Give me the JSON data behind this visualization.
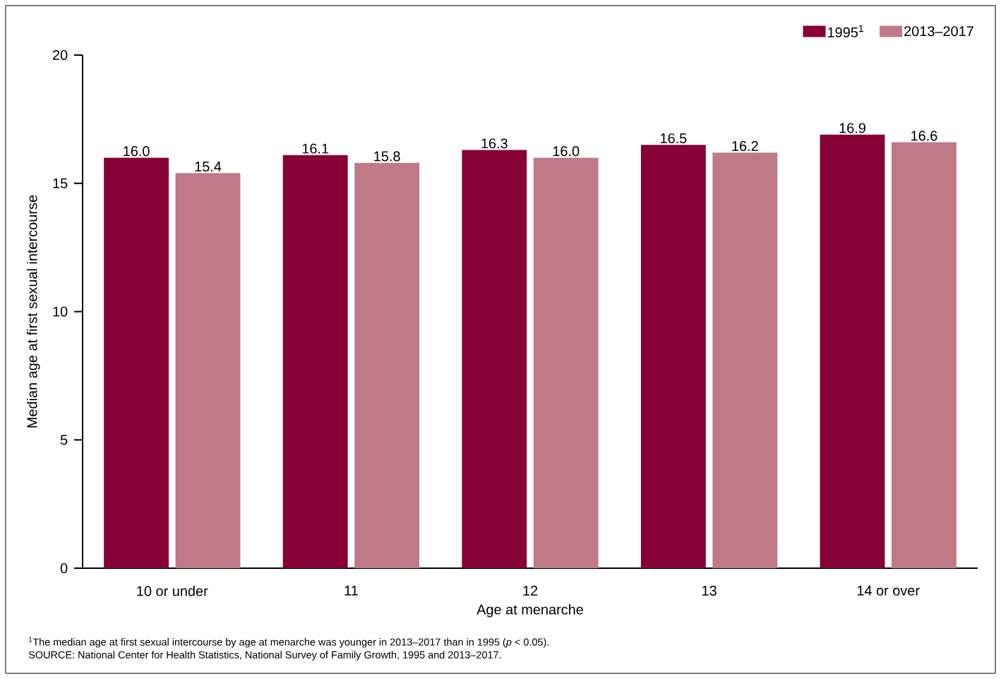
{
  "chart_data": {
    "type": "bar",
    "xlabel": "Age at menarche",
    "ylabel": "Median age at first sexual intercourse",
    "categories": [
      "10 or under",
      "11",
      "12",
      "13",
      "14 or over"
    ],
    "series": [
      {
        "name": "1995$^{1}$",
        "color": "#870036",
        "values": [
          16.0,
          16.1,
          16.3,
          16.5,
          16.9
        ],
        "value_labels": [
          "16.0",
          "16.1",
          "16.3",
          "16.5",
          "16.9"
        ]
      },
      {
        "name": "2013–2017",
        "color": "#c07a87",
        "values": [
          15.4,
          15.8,
          16.0,
          16.2,
          16.6
        ],
        "value_labels": [
          "15.4",
          "15.8",
          "16.0",
          "16.2",
          "16.6"
        ]
      }
    ],
    "ylim": [
      0,
      20
    ],
    "yticks": [
      0,
      5,
      10,
      15,
      20
    ],
    "grid": false,
    "legend": "top right",
    "annotations": [
      "$^{1}$The median age at first sexual intercourse by age at menarche was younger in 2013–2017 than in 1995 (*p* < 0.05).",
      "SOURCE: National Center for Health Statistics, National Survey of Family Growth, 1995 and 2013–2017."
    ]
  }
}
